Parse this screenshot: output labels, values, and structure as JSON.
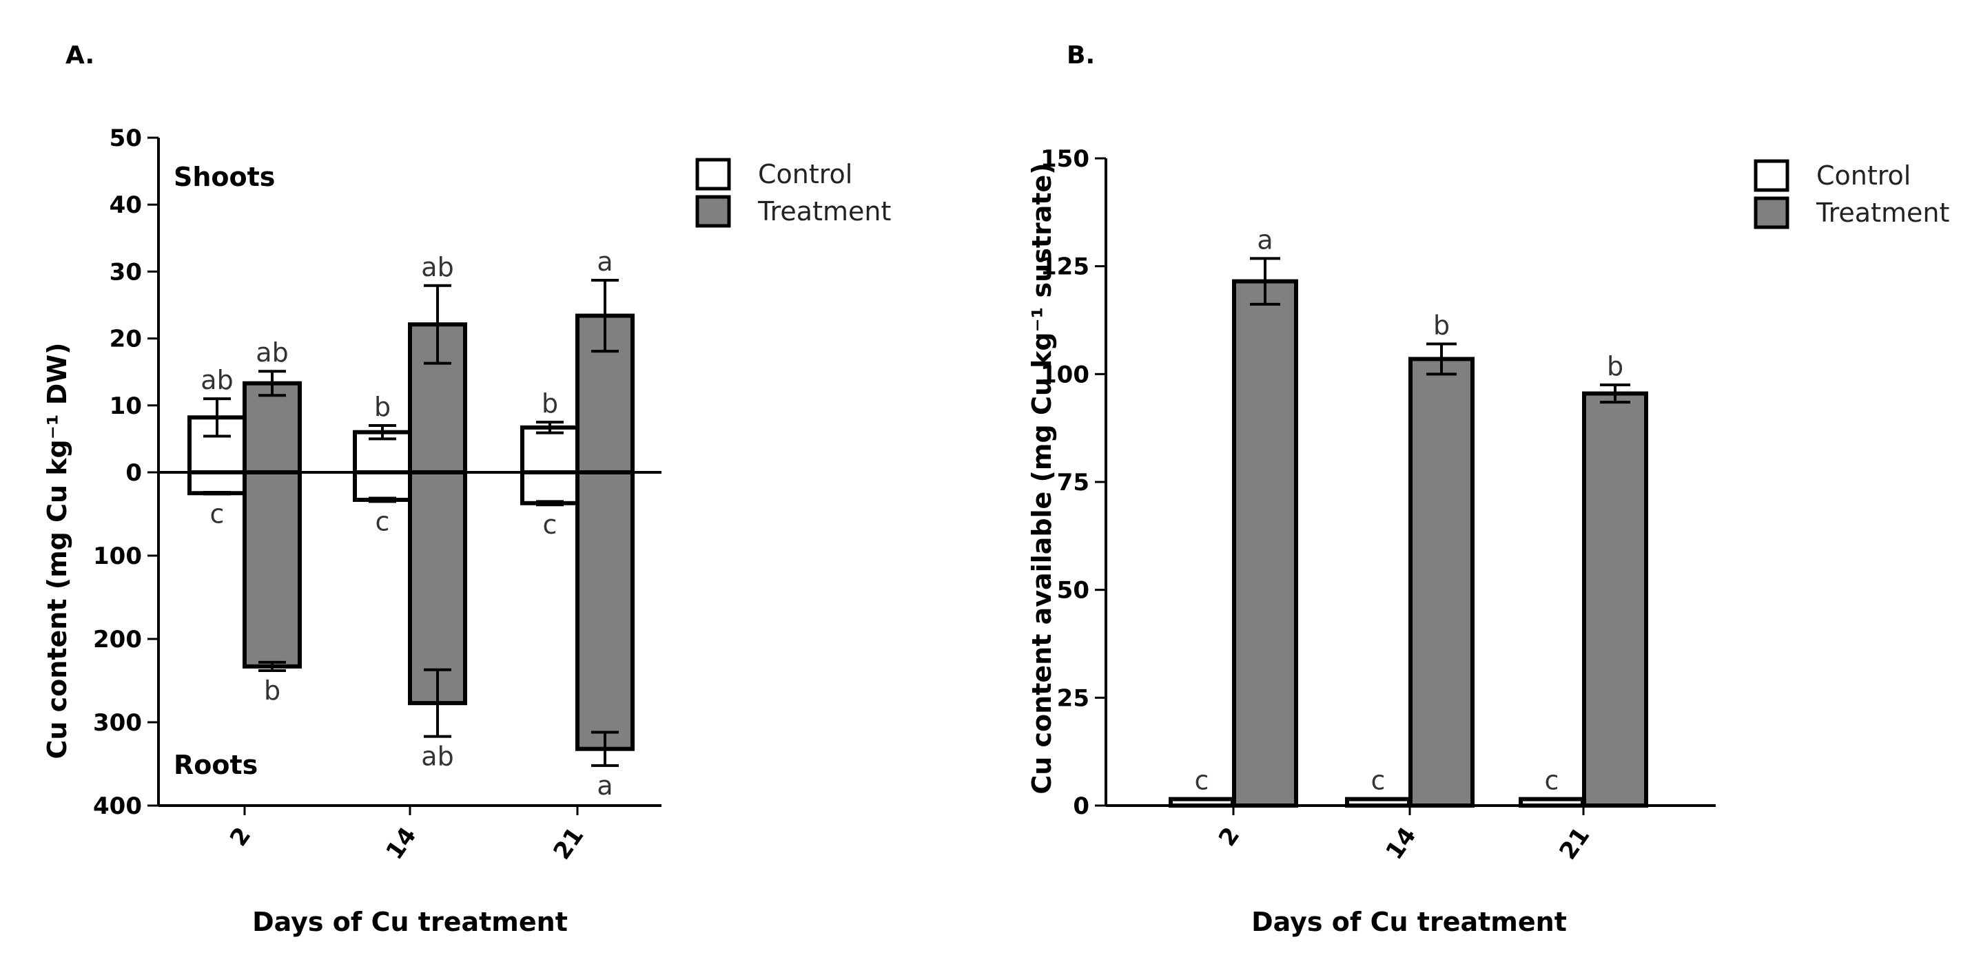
{
  "chart_data": [
    {
      "id": "A",
      "panel_label": "A.",
      "type": "bar",
      "orientation": "mirrored",
      "categories": [
        "2",
        "14",
        "21"
      ],
      "xlabel": "Days of Cu treatment",
      "ylabel": "Cu content (mg Cu kg⁻¹ DW)",
      "region_labels": {
        "top": "Shoots",
        "bottom": "Roots"
      },
      "top_axis": {
        "ylim": [
          0,
          50
        ],
        "ticks": [
          0,
          10,
          20,
          30,
          40,
          50
        ],
        "tick_labels": [
          "0",
          "10",
          "20",
          "30",
          "40",
          "50"
        ]
      },
      "bottom_axis": {
        "ylim": [
          0,
          400
        ],
        "ticks": [
          100,
          200,
          300,
          400
        ],
        "tick_labels": [
          "100",
          "200",
          "300",
          "400"
        ]
      },
      "legend": {
        "position": "top-right",
        "entries": [
          "Control",
          "Treatment"
        ]
      },
      "series": [
        {
          "name": "Control",
          "color": "#ffffff",
          "shoots": [
            8.2,
            6.0,
            6.7
          ],
          "shoots_err": [
            2.8,
            1.0,
            0.8
          ],
          "shoots_letters": [
            "ab",
            "b",
            "b"
          ],
          "roots": [
            25,
            33,
            37
          ],
          "roots_err": [
            1,
            2,
            2
          ],
          "roots_letters": [
            "c",
            "c",
            "c"
          ]
        },
        {
          "name": "Treatment",
          "color": "#808080",
          "shoots": [
            13.3,
            22.1,
            23.4
          ],
          "shoots_err": [
            1.8,
            5.8,
            5.3
          ],
          "shoots_letters": [
            "ab",
            "ab",
            "a"
          ],
          "roots": [
            233,
            277,
            332
          ],
          "roots_err": [
            5,
            40,
            20
          ],
          "roots_letters": [
            "b",
            "ab",
            "a"
          ]
        }
      ]
    },
    {
      "id": "B",
      "panel_label": "B.",
      "type": "bar",
      "categories": [
        "2",
        "14",
        "21"
      ],
      "xlabel": "Days of Cu treatment",
      "ylabel": "Cu content available (mg Cu kg⁻¹ sustrate)",
      "ylim": [
        0,
        150
      ],
      "ticks": [
        0,
        25,
        50,
        75,
        100,
        125,
        150
      ],
      "tick_labels": [
        "0",
        "25",
        "50",
        "75",
        "100",
        "125",
        "150"
      ],
      "legend": {
        "position": "top-right",
        "entries": [
          "Control",
          "Treatment"
        ]
      },
      "series": [
        {
          "name": "Control",
          "color": "#ffffff",
          "values": [
            1.5,
            1.5,
            1.5
          ],
          "err": [
            0,
            0,
            0
          ],
          "letters": [
            "c",
            "c",
            "c"
          ]
        },
        {
          "name": "Treatment",
          "color": "#808080",
          "values": [
            121.5,
            103.5,
            95.5
          ],
          "err": [
            5.3,
            3.5,
            2.0
          ],
          "letters": [
            "a",
            "b",
            "b"
          ]
        }
      ]
    }
  ]
}
